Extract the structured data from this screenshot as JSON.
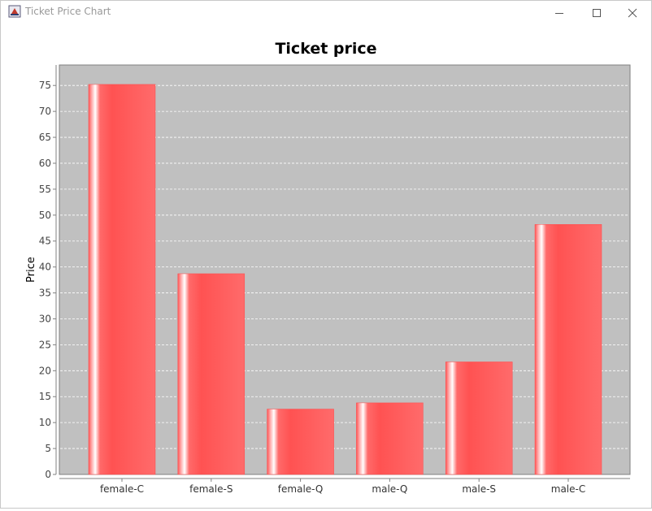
{
  "window": {
    "title": "Ticket Price Chart",
    "app_icon": "java-cup-icon",
    "controls": {
      "minimize": "minimize-icon",
      "maximize": "maximize-icon",
      "close": "close-icon"
    }
  },
  "colors": {
    "plot_background": "#c0c0c0",
    "bar_base": "#ff5555",
    "bar_highlight": "#ffffff",
    "grid": "#ffffff"
  },
  "chart_data": {
    "type": "bar",
    "title": "Ticket price",
    "xlabel": "",
    "ylabel": "Price",
    "categories": [
      "female-C",
      "female-S",
      "female-Q",
      "male-Q",
      "male-S",
      "male-C"
    ],
    "values": [
      75.2,
      38.7,
      12.6,
      13.8,
      21.7,
      48.2
    ],
    "ylim": [
      0,
      79
    ],
    "yticks": [
      0,
      5,
      10,
      15,
      20,
      25,
      30,
      35,
      40,
      45,
      50,
      55,
      60,
      65,
      70,
      75
    ],
    "grid": true,
    "legend": "none"
  }
}
